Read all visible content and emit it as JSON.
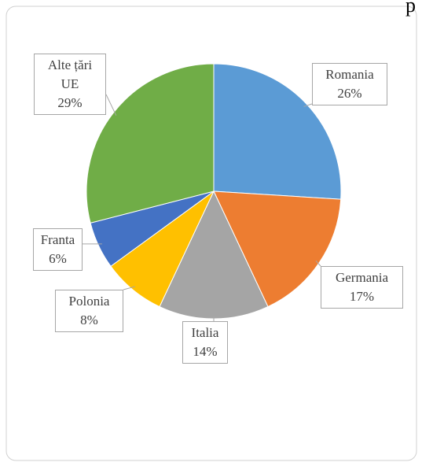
{
  "chart_data": {
    "type": "pie",
    "categories": [
      "Romania",
      "Germania",
      "Italia",
      "Polonia",
      "Franta",
      "Alte țări UE"
    ],
    "values": [
      26,
      17,
      14,
      8,
      6,
      29
    ],
    "value_labels": [
      "26%",
      "17%",
      "14%",
      "8%",
      "6%",
      "29%"
    ],
    "colors": [
      "#5b9bd5",
      "#ed7d31",
      "#a5a5a5",
      "#ffc000",
      "#4472c4",
      "#70ad47"
    ],
    "corner_text": "p"
  }
}
